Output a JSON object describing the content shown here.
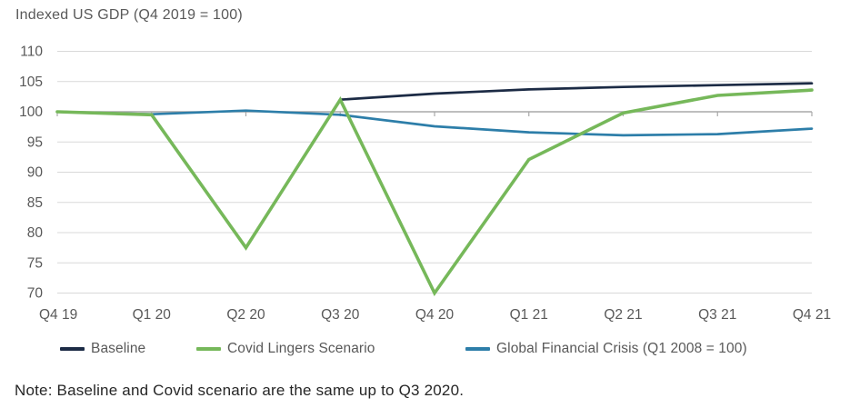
{
  "chart_data": {
    "type": "line",
    "title": "Indexed US GDP (Q4 2019 = 100)",
    "categories": [
      "Q4 19",
      "Q1 20",
      "Q2 20",
      "Q3 20",
      "Q4 20",
      "Q1 21",
      "Q2 21",
      "Q3 21",
      "Q4 21"
    ],
    "y_ticks": [
      110,
      105,
      100,
      95,
      90,
      85,
      80,
      75,
      70
    ],
    "ylim": [
      70,
      110
    ],
    "axis_line_at": 100,
    "grid": true,
    "legend_position": "bottom",
    "series": [
      {
        "name": "Baseline",
        "color": "#1c2b45",
        "values": [
          100,
          99.5,
          77.5,
          102,
          103,
          103.7,
          104.1,
          104.4,
          104.7
        ]
      },
      {
        "name": "Covid Lingers Scenario",
        "color": "#76b85a",
        "values": [
          100,
          99.5,
          77.5,
          102,
          70,
          92.1,
          99.8,
          102.7,
          103.6
        ]
      },
      {
        "name": "Global Financial Crisis (Q1 2008 = 100)",
        "color": "#2d7ea9",
        "values": [
          100,
          99.6,
          100.2,
          99.5,
          97.6,
          96.6,
          96.1,
          96.3,
          97.2
        ]
      }
    ],
    "note": "Note: Baseline and Covid scenario are the same up to Q3 2020."
  },
  "colors": {
    "background": "#ffffff",
    "gridline": "#d9d9d9",
    "axis_line": "#a8a8a8",
    "tick_label": "#595959",
    "note_text": "#262626"
  }
}
